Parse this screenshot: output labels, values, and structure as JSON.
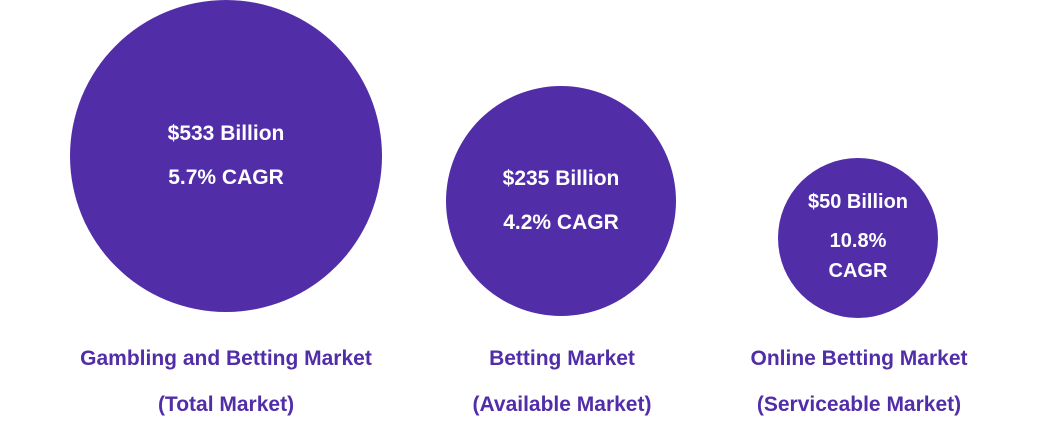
{
  "colors": {
    "circle": "#512da8",
    "label_text": "#512da8",
    "circle_text": "#ffffff"
  },
  "chart_data": {
    "type": "bubble",
    "markets": [
      {
        "value": "$533 Billion",
        "value_number": 533,
        "cagr": "5.7% CAGR",
        "name": "Gambling and Betting Market",
        "scope": "(Total Market)"
      },
      {
        "value": "$235 Billion",
        "value_number": 235,
        "cagr": "4.2% CAGR",
        "name": "Betting Market",
        "scope": "(Available Market)"
      },
      {
        "value": "$50 Billion",
        "value_number": 50,
        "cagr": "10.8% CAGR",
        "name": "Online Betting Market",
        "scope": "(Serviceable Market)"
      }
    ]
  }
}
